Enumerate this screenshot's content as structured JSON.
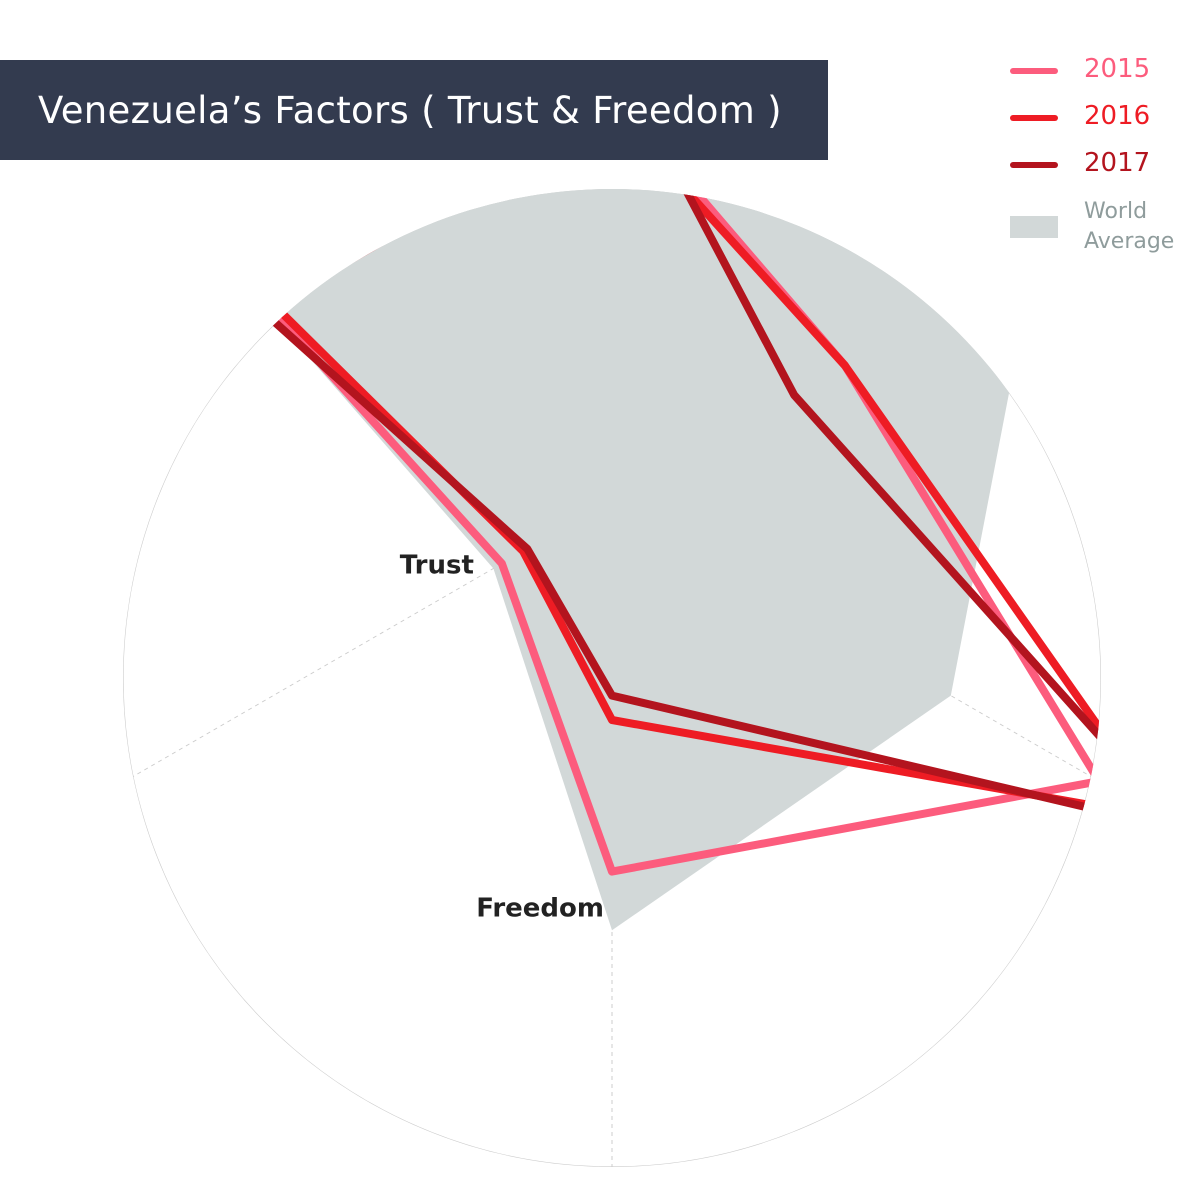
{
  "title": "Venezuela’s Factors ( Trust & Freedom )",
  "colors": {
    "title_bg": "#333b4f",
    "series_2015": "#fc5c7d",
    "series_2016": "#ee1c24",
    "series_2017": "#b3141e",
    "world_average": "#d2d8d8",
    "world_average_label": "#8f9c9c",
    "grid": "#cccccc"
  },
  "legend": {
    "items": [
      {
        "label": "2015",
        "color": "#fc5c7d"
      },
      {
        "label": "2016",
        "color": "#ee1c24"
      },
      {
        "label": "2017",
        "color": "#b3141e"
      }
    ],
    "world_average": {
      "label": "World Average",
      "color": "#d2d8d8"
    }
  },
  "chart_data": {
    "type": "radar",
    "title": "Venezuela’s Factors ( Trust & Freedom )",
    "axes": [
      "",
      "",
      "",
      "Freedom",
      "Trust",
      ""
    ],
    "axis_labels_shown": [
      "Trust",
      "Freedom"
    ],
    "rlim": [
      0,
      1
    ],
    "clipped_at_outer_ring": true,
    "legend_position": "top-right",
    "grid": true,
    "series": [
      {
        "name": "2015",
        "values": [
          0.83,
          0.55,
          1.15,
          0.76,
          0.26,
          0.83
        ]
      },
      {
        "name": "2016",
        "values": [
          0.8,
          0.55,
          1.3,
          0.45,
          0.21,
          0.8
        ]
      },
      {
        "name": "2017",
        "values": [
          0.92,
          0.43,
          1.35,
          0.4,
          0.2,
          0.92
        ]
      },
      {
        "name": "World Average",
        "values": [
          0.9,
          1.0,
          0.8,
          0.88,
          0.28,
          0.85
        ]
      }
    ]
  }
}
